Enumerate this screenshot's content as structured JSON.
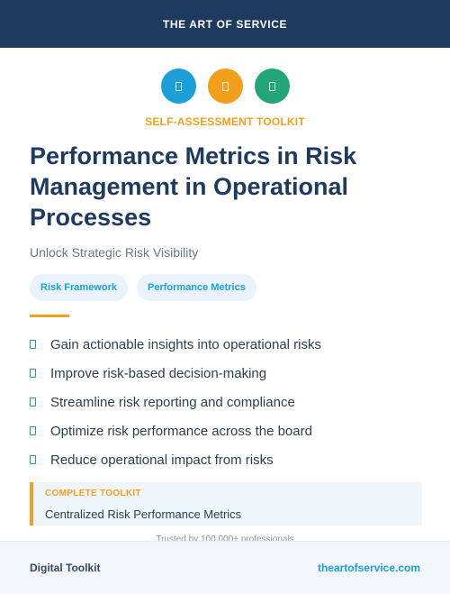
{
  "header": {
    "brand": "THE ART OF SERVICE"
  },
  "icons": [
    {
      "name": "document-icon",
      "color": "#1a9fd9"
    },
    {
      "name": "document-icon",
      "color": "#f29f1c"
    },
    {
      "name": "document-icon",
      "color": "#22a579"
    }
  ],
  "kicker": "SELF-ASSESSMENT TOOLKIT",
  "title": "Performance Metrics in Risk Management in Operational Processes",
  "subtitle": "Unlock Strategic Risk Visibility",
  "tags": [
    "Risk Framework",
    "Performance Metrics"
  ],
  "benefits": [
    "Gain actionable insights into operational risks",
    "Improve risk-based decision-making",
    "Streamline risk reporting and compliance",
    "Optimize risk performance across the board",
    "Reduce operational impact from risks"
  ],
  "callout": {
    "label": "COMPLETE TOOLKIT",
    "text": "Centralized Risk Performance Metrics"
  },
  "trusted": "Trusted by 100,000+ professionals",
  "footer": {
    "left": "Digital Toolkit",
    "right": "theartofservice.com"
  },
  "colors": {
    "navy": "#1e3a5f",
    "blue": "#1a9fd9",
    "orange": "#f29f1c",
    "green": "#22a579"
  }
}
